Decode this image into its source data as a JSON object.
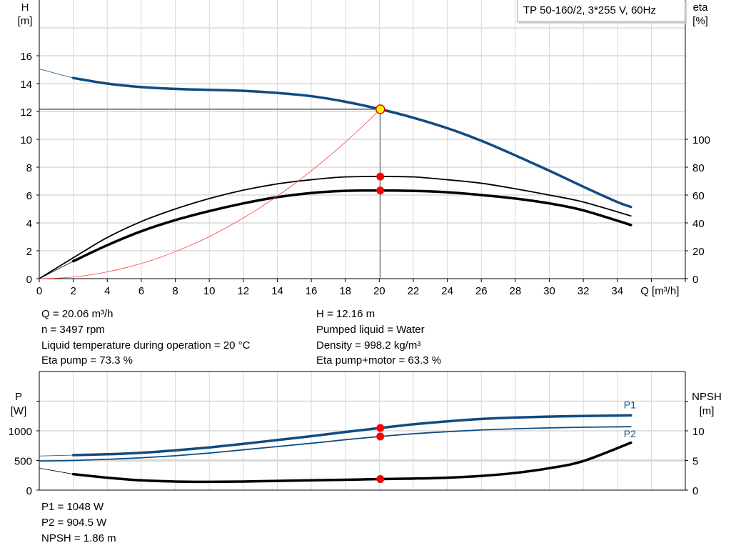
{
  "title": "TP 50-160/2, 3*255 V, 60Hz",
  "colors": {
    "head": "#0f4c81",
    "eta": "#000000",
    "system": "#ff4040",
    "power": "#0f4c81",
    "npsh": "#000000",
    "marker": "#ff0000",
    "duty_marker": "#ffff00"
  },
  "chart_data": [
    {
      "type": "line",
      "xlabel": "Q [m³/h]",
      "ylabel": [
        "H",
        "[m]"
      ],
      "y2label": [
        "eta",
        "[%]"
      ],
      "xlim": [
        0,
        38
      ],
      "ylim": [
        0,
        20
      ],
      "y2lim": [
        0,
        200
      ],
      "xticks": [
        0,
        2,
        4,
        6,
        8,
        10,
        12,
        14,
        16,
        18,
        20,
        22,
        24,
        26,
        28,
        30,
        32,
        34
      ],
      "yticks": [
        0,
        2,
        4,
        6,
        8,
        10,
        12,
        14,
        16
      ],
      "y2ticks": [
        0,
        20,
        40,
        60,
        80,
        100
      ],
      "grid": true,
      "series": [
        {
          "key": "H",
          "axis": "left",
          "color": "#0f4c81",
          "thick": true,
          "x": [
            2,
            4,
            6,
            8,
            10,
            12,
            14,
            16,
            18,
            20.06,
            22,
            24,
            26,
            28,
            30,
            32,
            34,
            34.8
          ],
          "y": [
            14.4,
            14.0,
            13.75,
            13.62,
            13.55,
            13.48,
            13.33,
            13.1,
            12.7,
            12.16,
            11.55,
            10.8,
            9.9,
            8.85,
            7.75,
            6.6,
            5.5,
            5.15
          ],
          "ext_x": [
            0,
            2
          ],
          "ext_y": [
            15.05,
            14.4
          ]
        },
        {
          "key": "eta_pump",
          "axis": "right",
          "color": "#000000",
          "thick": false,
          "x": [
            0,
            2,
            4,
            6,
            8,
            10,
            12,
            14,
            16,
            18,
            20.06,
            22,
            24,
            26,
            28,
            30,
            32,
            34.8
          ],
          "y": [
            0,
            15,
            29.5,
            41,
            50,
            57.5,
            63.5,
            68,
            71,
            73,
            73.3,
            73,
            71,
            68.5,
            64.5,
            60,
            55,
            45
          ]
        },
        {
          "key": "eta_pump_motor",
          "axis": "right",
          "color": "#000000",
          "thick": true,
          "x": [
            2,
            4,
            6,
            8,
            10,
            12,
            14,
            16,
            18,
            20.06,
            22,
            24,
            26,
            28,
            30,
            32,
            34.8
          ],
          "y": [
            12.5,
            24,
            34,
            42,
            48.5,
            54,
            58.5,
            61.5,
            63,
            63.3,
            63,
            62,
            60,
            57.5,
            54,
            49,
            38.5
          ],
          "ext_x": [
            0,
            2
          ],
          "ext_y": [
            0,
            12.5
          ]
        },
        {
          "key": "system",
          "axis": "left",
          "color": "#ff4040",
          "thick": false,
          "quadratic_through": [
            20.06,
            12.16
          ]
        }
      ],
      "duty_point": {
        "Q": 20.06,
        "H": 12.16,
        "eta_pump": 73.3,
        "eta_pump_motor": 63.3
      }
    },
    {
      "type": "line",
      "ylabel": [
        "P",
        "[W]"
      ],
      "y2label": [
        "NPSH",
        "[m]"
      ],
      "xlim": [
        0,
        38
      ],
      "ylim": [
        0,
        2000
      ],
      "y2lim": [
        0,
        20
      ],
      "yticks": [
        0,
        500,
        1000
      ],
      "y2ticks": [
        0,
        5,
        10
      ],
      "grid": true,
      "series": [
        {
          "key": "P1",
          "name": "P1",
          "axis": "left",
          "color": "#0f4c81",
          "thick": true,
          "x": [
            2,
            4,
            6,
            8,
            10,
            12,
            14,
            16,
            18,
            20.06,
            22,
            24,
            26,
            28,
            30,
            32,
            34.8
          ],
          "y": [
            590,
            605,
            630,
            670,
            720,
            780,
            845,
            910,
            980,
            1048,
            1110,
            1160,
            1200,
            1225,
            1240,
            1250,
            1260
          ],
          "ext_x": [
            0,
            2
          ],
          "ext_y": [
            575,
            590
          ]
        },
        {
          "key": "P2",
          "name": "P2",
          "axis": "left",
          "color": "#0f4c81",
          "thick": false,
          "x": [
            0,
            2,
            4,
            6,
            8,
            10,
            12,
            14,
            16,
            18,
            20.06,
            22,
            24,
            26,
            28,
            30,
            32,
            34.8
          ],
          "y": [
            490,
            500,
            520,
            545,
            580,
            625,
            680,
            735,
            790,
            850,
            904.5,
            950,
            985,
            1015,
            1035,
            1050,
            1060,
            1070
          ]
        },
        {
          "key": "NPSH",
          "axis": "right",
          "color": "#000000",
          "thick": true,
          "x": [
            2,
            4,
            6,
            8,
            10,
            12,
            14,
            16,
            18,
            20.06,
            22,
            24,
            26,
            28,
            30,
            32,
            34.8
          ],
          "y": [
            2.7,
            2.1,
            1.65,
            1.45,
            1.4,
            1.45,
            1.55,
            1.65,
            1.75,
            1.86,
            1.95,
            2.1,
            2.4,
            2.9,
            3.7,
            4.9,
            8.0
          ],
          "ext_x": [
            0,
            2
          ],
          "ext_y": [
            3.7,
            2.7
          ]
        }
      ],
      "duty_point": {
        "Q": 20.06,
        "P1": 1048,
        "P2": 904.5,
        "NPSH": 1.86
      }
    }
  ],
  "info_top_left": [
    "Q = 20.06 m³/h",
    "n = 3497 rpm",
    "Liquid temperature during operation = 20 °C",
    "Eta pump = 73.3 %"
  ],
  "info_top_right": [
    "H = 12.16 m",
    "Pumped liquid = Water",
    "Density = 998.2 kg/m³",
    "Eta pump+motor = 63.3 %"
  ],
  "info_bottom": [
    "P1 = 1048 W",
    "P2 = 904.5 W",
    "NPSH = 1.86 m"
  ]
}
